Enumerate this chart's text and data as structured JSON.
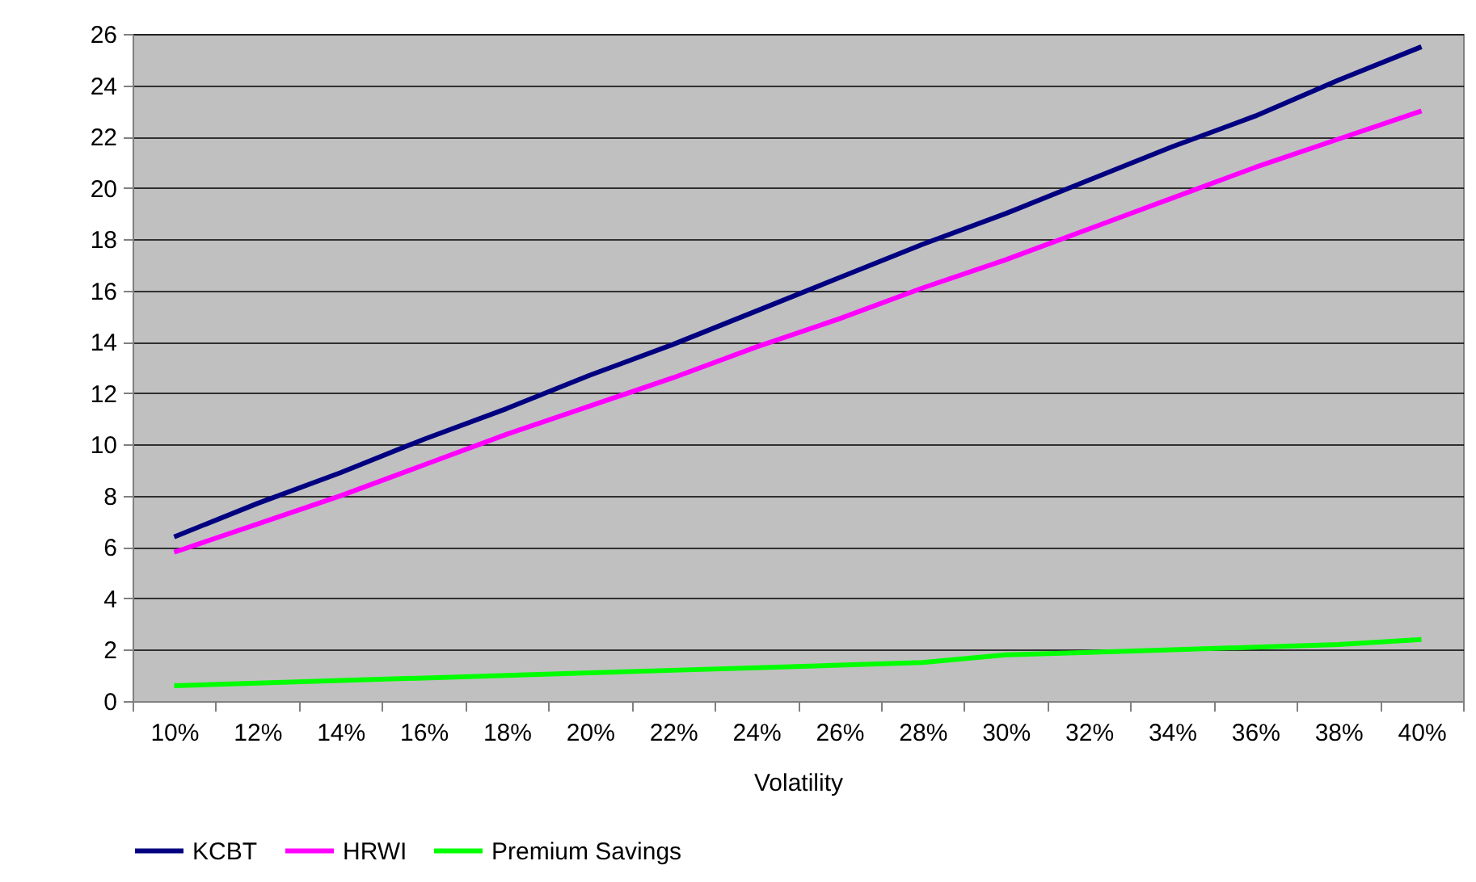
{
  "chart_data": {
    "type": "line",
    "xlabel": "Volatility",
    "categories": [
      "10%",
      "12%",
      "14%",
      "16%",
      "18%",
      "20%",
      "22%",
      "24%",
      "26%",
      "28%",
      "30%",
      "32%",
      "34%",
      "36%",
      "38%",
      "40%"
    ],
    "series": [
      {
        "name": "KCBT",
        "color": "#000080",
        "values": [
          6.4,
          7.7,
          8.9,
          10.2,
          11.4,
          12.7,
          13.9,
          15.2,
          16.5,
          17.8,
          19.0,
          20.3,
          21.6,
          22.8,
          24.2,
          25.5
        ]
      },
      {
        "name": "HRWI",
        "color": "#ff00ff",
        "values": [
          5.8,
          6.9,
          8.0,
          9.2,
          10.4,
          11.5,
          12.6,
          13.8,
          14.9,
          16.1,
          17.2,
          18.4,
          19.6,
          20.8,
          21.9,
          23.0
        ]
      },
      {
        "name": "Premium Savings",
        "color": "#00ff00",
        "values": [
          0.6,
          0.7,
          0.8,
          0.9,
          1.0,
          1.1,
          1.2,
          1.3,
          1.4,
          1.5,
          1.8,
          1.9,
          2.0,
          2.1,
          2.2,
          2.4
        ]
      }
    ],
    "ylim": [
      0,
      26
    ],
    "yticks": [
      0,
      2,
      4,
      6,
      8,
      10,
      12,
      14,
      16,
      18,
      20,
      22,
      24,
      26
    ],
    "grid": "y",
    "legend": "bottom",
    "marker": "none",
    "line_style": "solid"
  }
}
